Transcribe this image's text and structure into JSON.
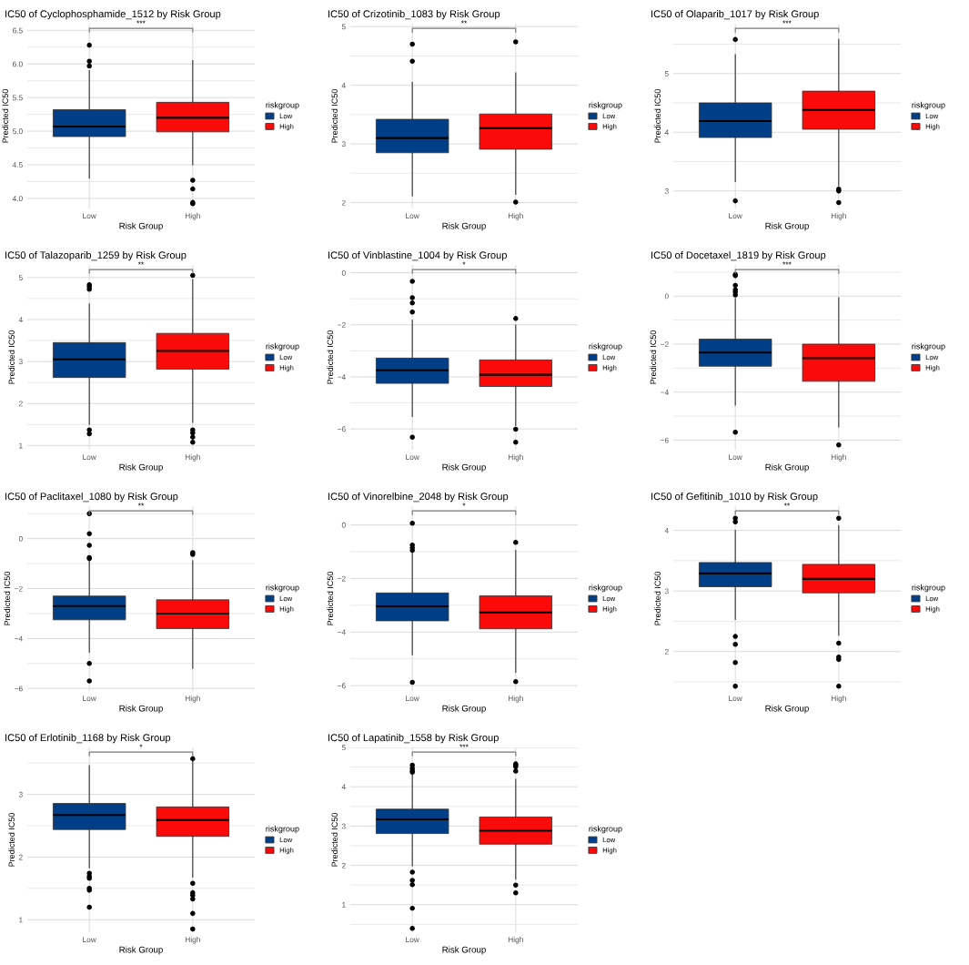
{
  "chart_data": [
    {
      "type": "box",
      "title": "IC50 of Cyclophosphamide_1512 by Risk Group",
      "xlabel": "Risk Group",
      "ylabel": "Predicted IC50",
      "categories": [
        "Low",
        "High"
      ],
      "legend_title": "riskgroup",
      "legend": "right",
      "grid": true,
      "annotations": [
        "***"
      ],
      "ylim": [
        3.85,
        6.6
      ],
      "yticks": [
        {
          "value": 4,
          "label": "4.0"
        },
        {
          "value": 4.25,
          "label": null
        },
        {
          "value": 4.5,
          "label": "4.5"
        },
        {
          "value": 4.75,
          "label": null
        },
        {
          "value": 5,
          "label": "5.0"
        },
        {
          "value": 5.25,
          "label": null
        },
        {
          "value": 5.5,
          "label": "5.5"
        },
        {
          "value": 5.75,
          "label": null
        },
        {
          "value": 6,
          "label": "6.0"
        },
        {
          "value": 6.25,
          "label": null
        },
        {
          "value": 6.5,
          "label": "6.5"
        }
      ],
      "series": [
        {
          "name": "Low",
          "color": "#003f87",
          "boxes": [
            {
              "low": 4.3,
              "q1": 4.92,
              "median": 5.07,
              "q3": 5.32,
              "high": 5.9,
              "outliers": [
                6.28,
                6.04,
                5.97
              ]
            },
            null
          ]
        },
        {
          "name": "High",
          "color": "#fb0a0a",
          "boxes": [
            null,
            {
              "low": 4.5,
              "q1": 4.99,
              "median": 5.2,
              "q3": 5.43,
              "high": 6.05,
              "outliers": [
                4.27,
                4.14,
                3.94,
                3.92
              ]
            }
          ]
        }
      ]
    },
    {
      "type": "box",
      "title": "IC50 of Crizotinib_1083 by Risk Group",
      "xlabel": "Risk Group",
      "ylabel": "Predicted IC50",
      "categories": [
        "Low",
        "High"
      ],
      "legend_title": "riskgroup",
      "legend": "right",
      "grid": true,
      "annotations": [
        "**"
      ],
      "ylim": [
        1.9,
        5.05
      ],
      "yticks": [
        2,
        {
          "value": 2.5,
          "label": null
        },
        3,
        {
          "value": 3.5,
          "label": null
        },
        4,
        {
          "value": 4.5,
          "label": null
        },
        5
      ],
      "series": [
        {
          "name": "Low",
          "color": "#003f87",
          "boxes": [
            {
              "low": 2.12,
              "q1": 2.85,
              "median": 3.1,
              "q3": 3.42,
              "high": 4.05,
              "outliers": [
                4.7,
                4.41
              ]
            },
            null
          ]
        },
        {
          "name": "High",
          "color": "#fb0a0a",
          "boxes": [
            null,
            {
              "low": 2.14,
              "q1": 2.91,
              "median": 3.27,
              "q3": 3.51,
              "high": 4.21,
              "outliers": [
                4.74,
                2.01
              ]
            }
          ]
        }
      ]
    },
    {
      "type": "box",
      "title": "IC50 of Olaparib_1017 by Risk Group",
      "xlabel": "Risk Group",
      "ylabel": "Predicted IC50",
      "categories": [
        "Low",
        "High"
      ],
      "legend_title": "riskgroup",
      "legend": "right",
      "grid": true,
      "annotations": [
        "***"
      ],
      "ylim": [
        2.7,
        5.85
      ],
      "yticks": [
        3,
        {
          "value": 3.5,
          "label": null
        },
        4,
        {
          "value": 4.5,
          "label": null
        },
        5,
        {
          "value": 5.5,
          "label": null
        }
      ],
      "series": [
        {
          "name": "Low",
          "color": "#003f87",
          "boxes": [
            {
              "low": 3.16,
              "q1": 3.91,
              "median": 4.19,
              "q3": 4.5,
              "high": 5.32,
              "outliers": [
                5.58,
                2.83
              ]
            },
            null
          ]
        },
        {
          "name": "High",
          "color": "#fb0a0a",
          "boxes": [
            null,
            {
              "low": 3.09,
              "q1": 4.05,
              "median": 4.38,
              "q3": 4.7,
              "high": 5.58,
              "outliers": [
                3.03,
                3.0,
                2.8
              ]
            }
          ]
        }
      ]
    },
    {
      "type": "box",
      "title": "IC50 of Talazoparib_1259 by Risk Group",
      "xlabel": "Risk Group",
      "ylabel": "Predicted IC50",
      "categories": [
        "Low",
        "High"
      ],
      "legend_title": "riskgroup",
      "legend": "right",
      "grid": true,
      "annotations": [
        "**"
      ],
      "ylim": [
        0.9,
        5.3
      ],
      "yticks": [
        1,
        {
          "value": 1.5,
          "label": null
        },
        2,
        {
          "value": 2.5,
          "label": null
        },
        3,
        {
          "value": 3.5,
          "label": null
        },
        4,
        {
          "value": 4.5,
          "label": null
        },
        5
      ],
      "series": [
        {
          "name": "Low",
          "color": "#003f87",
          "boxes": [
            {
              "low": 1.5,
              "q1": 2.62,
              "median": 3.05,
              "q3": 3.45,
              "high": 4.37,
              "outliers": [
                4.83,
                4.78,
                4.72,
                1.37,
                1.28
              ]
            },
            null
          ]
        },
        {
          "name": "High",
          "color": "#fb0a0a",
          "boxes": [
            null,
            {
              "low": 1.55,
              "q1": 2.82,
              "median": 3.25,
              "q3": 3.67,
              "high": 4.95,
              "outliers": [
                5.05,
                1.37,
                1.3,
                1.2,
                1.08
              ]
            }
          ]
        }
      ]
    },
    {
      "type": "box",
      "title": "IC50 of Vinblastine_1004 by Risk Group",
      "xlabel": "Risk Group",
      "ylabel": "Predicted IC50",
      "categories": [
        "Low",
        "High"
      ],
      "legend_title": "riskgroup",
      "legend": "right",
      "grid": true,
      "annotations": [
        "*"
      ],
      "ylim": [
        -6.8,
        0.3
      ],
      "yticks": [
        {
          "value": -6,
          "label": "−6"
        },
        {
          "value": -5,
          "label": null
        },
        {
          "value": -4,
          "label": "−4"
        },
        {
          "value": -3,
          "label": null
        },
        {
          "value": -2,
          "label": "−2"
        },
        {
          "value": -1,
          "label": null
        },
        0
      ],
      "series": [
        {
          "name": "Low",
          "color": "#003f87",
          "boxes": [
            {
              "low": -5.52,
              "q1": -4.25,
              "median": -3.75,
              "q3": -3.28,
              "high": -1.83,
              "outliers": [
                -0.33,
                -0.96,
                -1.16,
                -1.51,
                -6.32
              ]
            },
            null
          ]
        },
        {
          "name": "High",
          "color": "#fb0a0a",
          "boxes": [
            null,
            {
              "low": -5.87,
              "q1": -4.37,
              "median": -3.92,
              "q3": -3.35,
              "high": -2.01,
              "outliers": [
                -1.76,
                -6.01,
                -6.51
              ]
            }
          ]
        }
      ]
    },
    {
      "type": "box",
      "title": "IC50 of Docetaxel_1819 by Risk Group",
      "xlabel": "Risk Group",
      "ylabel": "Predicted IC50",
      "categories": [
        "Low",
        "High"
      ],
      "legend_title": "riskgroup",
      "legend": "right",
      "grid": true,
      "annotations": [
        "***"
      ],
      "ylim": [
        -6.4,
        1.3
      ],
      "yticks": [
        {
          "value": -6,
          "label": "−6"
        },
        {
          "value": -5,
          "label": null
        },
        {
          "value": -4,
          "label": "−4"
        },
        {
          "value": -3,
          "label": null
        },
        {
          "value": -2,
          "label": "−2"
        },
        {
          "value": -1,
          "label": null
        },
        0,
        {
          "value": 1,
          "label": null
        }
      ],
      "series": [
        {
          "name": "Low",
          "color": "#003f87",
          "boxes": [
            {
              "low": -4.54,
              "q1": -2.92,
              "median": -2.35,
              "q3": -1.79,
              "high": -0.1,
              "outliers": [
                0.9,
                0.85,
                0.45,
                0.27,
                0.17,
                0.05,
                -5.67
              ]
            },
            null
          ]
        },
        {
          "name": "High",
          "color": "#fb0a0a",
          "boxes": [
            null,
            {
              "low": -5.45,
              "q1": -3.55,
              "median": -2.59,
              "q3": -2.0,
              "high": -0.07,
              "outliers": [
                -6.2
              ]
            }
          ]
        }
      ]
    },
    {
      "type": "box",
      "title": "IC50 of Paclitaxel_1080 by Risk Group",
      "xlabel": "Risk Group",
      "ylabel": "Predicted IC50",
      "categories": [
        "Low",
        "High"
      ],
      "legend_title": "riskgroup",
      "legend": "right",
      "grid": true,
      "annotations": [
        "**"
      ],
      "ylim": [
        -6.1,
        1.3
      ],
      "yticks": [
        {
          "value": -6,
          "label": "−6"
        },
        {
          "value": -5,
          "label": null
        },
        {
          "value": -4,
          "label": "−4"
        },
        {
          "value": -3,
          "label": null
        },
        {
          "value": -2,
          "label": "−2"
        },
        {
          "value": -1,
          "label": null
        },
        0,
        {
          "value": 1,
          "label": null
        }
      ],
      "series": [
        {
          "name": "Low",
          "color": "#003f87",
          "boxes": [
            {
              "low": -4.55,
              "q1": -3.25,
              "median": -2.7,
              "q3": -2.3,
              "high": -0.85,
              "outliers": [
                1.0,
                0.2,
                -0.27,
                -0.76,
                -0.8,
                -5.0,
                -5.7
              ]
            },
            null
          ]
        },
        {
          "name": "High",
          "color": "#fb0a0a",
          "boxes": [
            null,
            {
              "low": -5.2,
              "q1": -3.6,
              "median": -3.0,
              "q3": -2.45,
              "high": -0.88,
              "outliers": [
                -0.63,
                -0.56
              ]
            }
          ]
        }
      ]
    },
    {
      "type": "box",
      "title": "IC50 of Vinorelbine_2048 by Risk Group",
      "xlabel": "Risk Group",
      "ylabel": "Predicted IC50",
      "categories": [
        "Low",
        "High"
      ],
      "legend_title": "riskgroup",
      "legend": "right",
      "grid": true,
      "annotations": [
        "*"
      ],
      "ylim": [
        -6.2,
        0.7
      ],
      "yticks": [
        {
          "value": -6,
          "label": "−6"
        },
        {
          "value": -5,
          "label": null
        },
        {
          "value": -4,
          "label": "−4"
        },
        {
          "value": -3,
          "label": null
        },
        {
          "value": -2,
          "label": "−2"
        },
        {
          "value": -1,
          "label": null
        },
        0
      ],
      "series": [
        {
          "name": "Low",
          "color": "#003f87",
          "boxes": [
            {
              "low": -4.85,
              "q1": -3.58,
              "median": -3.04,
              "q3": -2.54,
              "high": -1.0,
              "outliers": [
                0.06,
                -0.75,
                -0.85,
                -0.95,
                -5.88
              ]
            },
            null
          ]
        },
        {
          "name": "High",
          "color": "#fb0a0a",
          "boxes": [
            null,
            {
              "low": -5.5,
              "q1": -3.88,
              "median": -3.27,
              "q3": -2.65,
              "high": -0.95,
              "outliers": [
                -0.65,
                -5.85
              ]
            }
          ]
        }
      ]
    },
    {
      "type": "box",
      "title": "IC50 of Gefitinib_1010 by Risk Group",
      "xlabel": "Risk Group",
      "ylabel": "Predicted IC50",
      "categories": [
        "Low",
        "High"
      ],
      "legend_title": "riskgroup",
      "legend": "right",
      "grid": true,
      "annotations": [
        "**"
      ],
      "ylim": [
        1.35,
        4.4
      ],
      "yticks": [
        {
          "value": 1.5,
          "label": null
        },
        2,
        {
          "value": 2.5,
          "label": null
        },
        3,
        {
          "value": 3.5,
          "label": null
        },
        4
      ],
      "series": [
        {
          "name": "Low",
          "color": "#003f87",
          "boxes": [
            {
              "low": 2.53,
              "q1": 3.07,
              "median": 3.29,
              "q3": 3.47,
              "high": 4.0,
              "outliers": [
                4.2,
                4.14,
                2.25,
                2.12,
                1.82,
                1.43
              ]
            },
            null
          ]
        },
        {
          "name": "High",
          "color": "#fb0a0a",
          "boxes": [
            null,
            {
              "low": 2.27,
              "q1": 2.97,
              "median": 3.2,
              "q3": 3.44,
              "high": 4.08,
              "outliers": [
                4.2,
                2.14,
                1.91,
                1.87,
                1.43
              ]
            }
          ]
        }
      ]
    },
    {
      "type": "box",
      "title": "IC50 of Erlotinib_1168 by Risk Group",
      "xlabel": "Risk Group",
      "ylabel": "Predicted IC50",
      "categories": [
        "Low",
        "High"
      ],
      "legend_title": "riskgroup",
      "legend": "right",
      "grid": true,
      "annotations": [
        "*"
      ],
      "ylim": [
        0.8,
        3.75
      ],
      "yticks": [
        1,
        {
          "value": 1.5,
          "label": null
        },
        2,
        {
          "value": 2.5,
          "label": null
        },
        3,
        {
          "value": 3.5,
          "label": null
        }
      ],
      "series": [
        {
          "name": "Low",
          "color": "#003f87",
          "boxes": [
            {
              "low": 1.83,
              "q1": 2.44,
              "median": 2.67,
              "q3": 2.855,
              "high": 3.46,
              "outliers": [
                1.74,
                1.69,
                1.66,
                1.5,
                1.47,
                1.2
              ]
            },
            null
          ]
        },
        {
          "name": "High",
          "color": "#fb0a0a",
          "boxes": [
            null,
            {
              "low": 1.68,
              "q1": 2.33,
              "median": 2.59,
              "q3": 2.8,
              "high": 3.55,
              "outliers": [
                3.57,
                1.58,
                1.43,
                1.39,
                1.33,
                1.1,
                0.85
              ]
            }
          ]
        }
      ]
    },
    {
      "type": "box",
      "title": "IC50 of Lapatinib_1558 by Risk Group",
      "xlabel": "Risk Group",
      "ylabel": "Predicted IC50",
      "categories": [
        "Low",
        "High"
      ],
      "legend_title": "riskgroup",
      "legend": "right",
      "grid": true,
      "annotations": [
        "***"
      ],
      "ylim": [
        0.3,
        5.0
      ],
      "yticks": [
        {
          "value": 0.5,
          "label": null
        },
        1,
        {
          "value": 1.5,
          "label": null
        },
        2,
        {
          "value": 2.5,
          "label": null
        },
        3,
        {
          "value": 3.5,
          "label": null
        },
        4,
        {
          "value": 4.5,
          "label": null
        },
        5
      ],
      "series": [
        {
          "name": "Low",
          "color": "#003f87",
          "boxes": [
            {
              "low": 1.99,
              "q1": 2.81,
              "median": 3.17,
              "q3": 3.43,
              "high": 4.3,
              "outliers": [
                4.55,
                4.47,
                4.41,
                4.37,
                1.83,
                1.62,
                1.51,
                0.91,
                0.4
              ]
            },
            null
          ]
        },
        {
          "name": "High",
          "color": "#fb0a0a",
          "boxes": [
            null,
            {
              "low": 1.65,
              "q1": 2.54,
              "median": 2.88,
              "q3": 3.23,
              "high": 4.19,
              "outliers": [
                4.58,
                4.55,
                4.51,
                4.4,
                1.5,
                1.3
              ]
            }
          ]
        }
      ]
    }
  ]
}
